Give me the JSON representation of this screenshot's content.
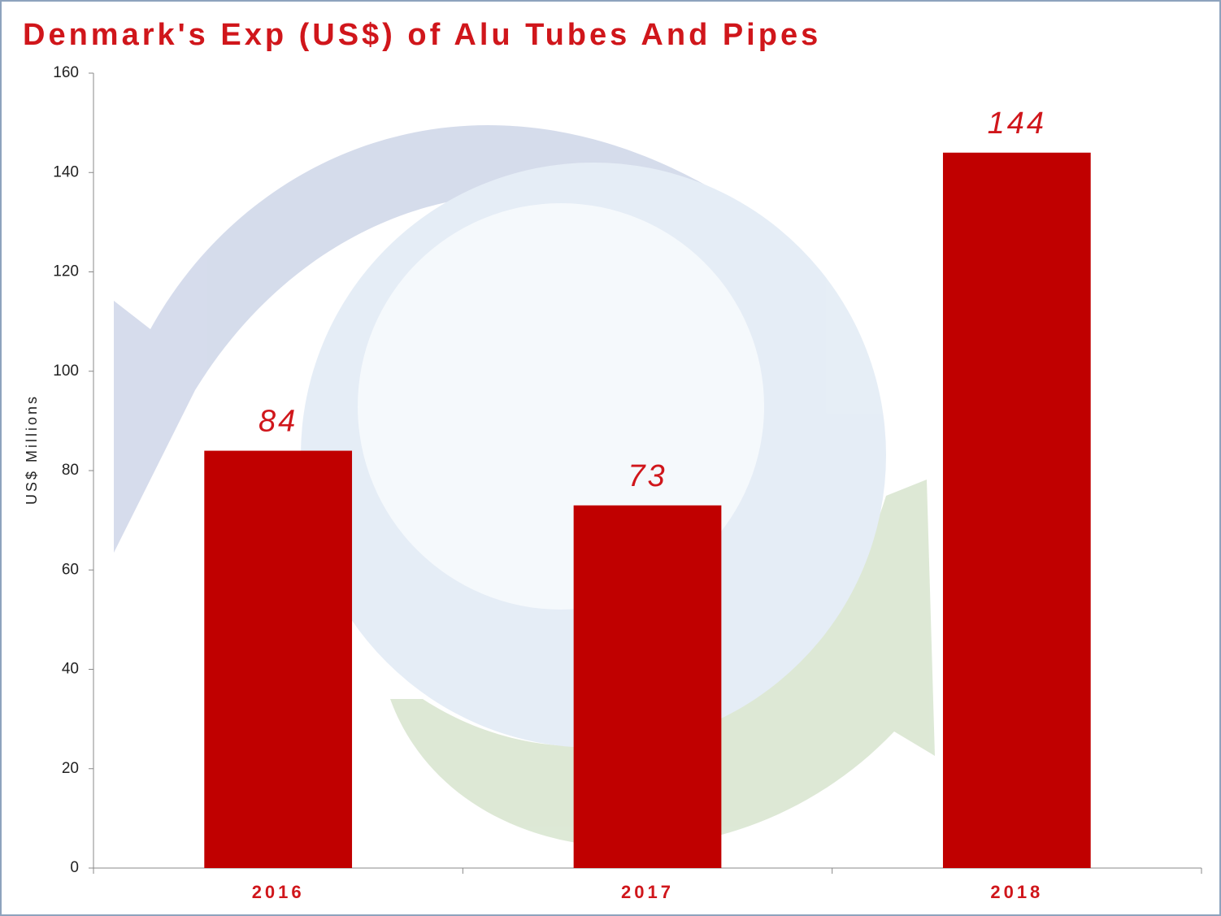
{
  "chart_data": {
    "type": "bar",
    "title": "Denmark's Exp (US$) of Alu Tubes And Pipes",
    "y_label": "US$ Millions",
    "categories": [
      "2016",
      "2017",
      "2018"
    ],
    "values": [
      84,
      73,
      144
    ],
    "color": "#c00000",
    "ylim": [
      0,
      160
    ],
    "yticks": [
      0,
      20,
      40,
      60,
      80,
      100,
      120,
      140,
      160
    ],
    "grid": false
  }
}
